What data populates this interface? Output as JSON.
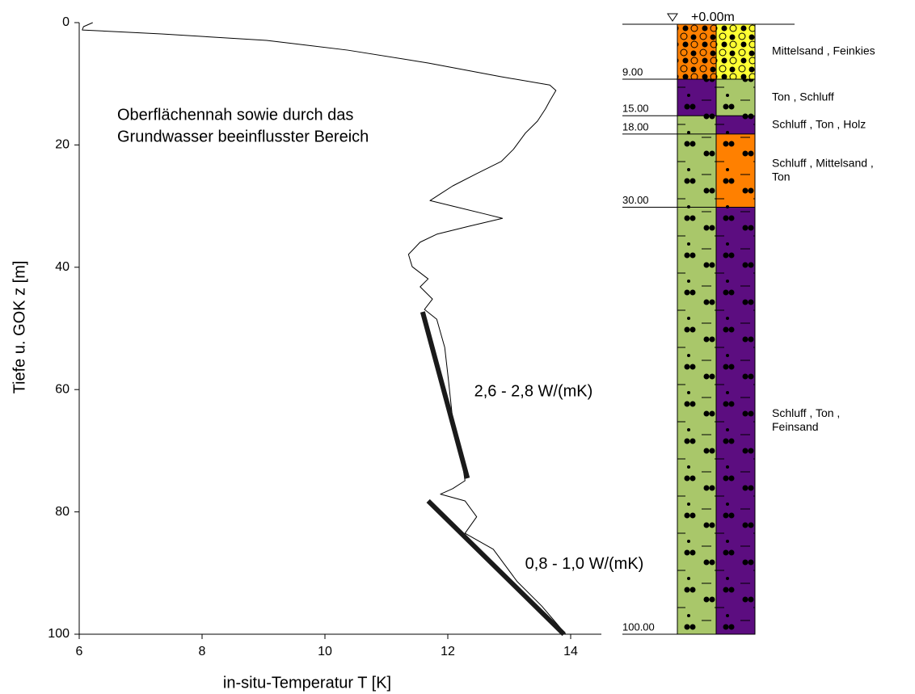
{
  "chart_data": {
    "type": "line",
    "xlabel": "in-situ-Temperatur T [K]",
    "ylabel": "Tiefe u. GOK z [m]",
    "xlim": [
      6,
      14.5
    ],
    "ylim": [
      100,
      0
    ],
    "xticks": [
      6,
      8,
      10,
      12,
      14
    ],
    "yticks": [
      0,
      20,
      40,
      60,
      80,
      100
    ],
    "annotation": [
      "Oberflächennah sowie durch das",
      "Grundwasser beeinflusster Bereich"
    ],
    "series": [
      {
        "color": "#000000",
        "x": [
          6.22,
          6.07,
          6.05,
          7.34,
          9.05,
          10.37,
          11.68,
          12.87,
          13.66,
          13.76,
          13.66,
          13.59,
          13.46,
          13.26,
          13.07,
          12.87,
          12.47,
          12.08,
          11.88,
          11.71,
          12.08,
          12.61,
          12.89,
          12.34,
          11.82,
          11.55,
          11.36,
          11.42,
          11.68,
          11.55,
          11.75,
          11.62,
          11.82,
          11.95,
          12.01,
          12.08,
          12.21,
          12.28,
          12.08,
          11.88,
          12.28,
          12.47,
          12.28,
          12.74,
          13.13,
          13.53,
          13.92
        ],
        "y": [
          0,
          0.66,
          1.2,
          1.85,
          2.9,
          4.5,
          6.6,
          8.85,
          10.2,
          11.1,
          12.8,
          14.1,
          16.1,
          18.1,
          20.7,
          22.7,
          24.7,
          26.7,
          28.0,
          29.1,
          30.0,
          31.3,
          32.0,
          33.3,
          34.6,
          35.9,
          37.9,
          39.9,
          41.9,
          43.2,
          45.2,
          46.9,
          48.5,
          53.1,
          58.4,
          65.0,
          70.3,
          74.9,
          76.2,
          77.1,
          78.2,
          80.8,
          83.5,
          86.1,
          91.4,
          95.4,
          100
        ]
      }
    ],
    "fits": [
      {
        "color": "#1a1a1a",
        "x": [
          11.59,
          12.32
        ],
        "y": [
          47.3,
          74.5
        ],
        "label": "2,6 - 2,8 W/(mK)"
      },
      {
        "color": "#1a1a1a",
        "x": [
          11.68,
          13.89
        ],
        "y": [
          78.2,
          100
        ],
        "label": "0,8 - 1,0 W/(mK)"
      }
    ],
    "log_depths": [
      {
        "value": 0,
        "label": "+0.00m"
      },
      {
        "value": 9,
        "label": "9.00"
      },
      {
        "value": 15,
        "label": "15.00"
      },
      {
        "value": 18,
        "label": "18.00"
      },
      {
        "value": 30,
        "label": "30.00"
      },
      {
        "value": 100,
        "label": "100.00"
      }
    ],
    "layers": [
      {
        "top": 0,
        "bottom": 9,
        "colors": [
          "#ff8000",
          "#ffff33"
        ],
        "label": [
          "Mittelsand  ,  Feinkies"
        ]
      },
      {
        "top": 9,
        "bottom": 15,
        "colors": [
          "#5c0d80",
          "#a9c76a"
        ],
        "label": [
          "Ton ,  Schluff"
        ]
      },
      {
        "top": 15,
        "bottom": 18,
        "colors": [
          "#a9c76a",
          "#5c0d80"
        ],
        "label": [
          "Schluff  ,  Ton ,  Holz"
        ]
      },
      {
        "top": 18,
        "bottom": 30,
        "colors": [
          "#a9c76a",
          "#ff8000"
        ],
        "label": [
          "Schluff  ,  Mittelsand  ,",
          "Ton"
        ]
      },
      {
        "top": 30,
        "bottom": 100,
        "colors": [
          "#a9c76a",
          "#5c0d80"
        ],
        "label": [
          "Schluff  ,  Ton ,",
          "Feinsand"
        ]
      }
    ]
  }
}
